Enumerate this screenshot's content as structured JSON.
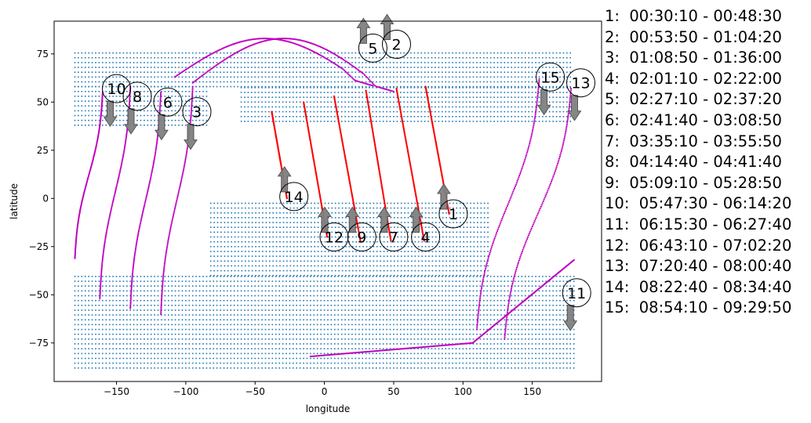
{
  "chart_data": {
    "type": "scatter",
    "xlabel": "longitude",
    "ylabel": "latitude",
    "xlim": [
      -195,
      200
    ],
    "ylim": [
      -95,
      92
    ],
    "xticks": [
      -150,
      -100,
      -50,
      0,
      50,
      100,
      150
    ],
    "yticks": [
      -75,
      -50,
      -25,
      0,
      25,
      50,
      75
    ],
    "grid": false,
    "colors": {
      "land_grid": "#1f77b4",
      "track_primary": "#ff0000",
      "track_secondary": "#bf00bf",
      "arrow": "#808080"
    },
    "land_regions": [
      {
        "lon": [
          -180,
          178
        ],
        "lat": [
          58,
          77
        ],
        "note": "northern band"
      },
      {
        "lon": [
          -180,
          -85
        ],
        "lat": [
          38,
          58
        ],
        "note": "northwest block"
      },
      {
        "lon": [
          -60,
          178
        ],
        "lat": [
          40,
          58
        ],
        "note": "northeast block"
      },
      {
        "lon": [
          -82,
          120
        ],
        "lat": [
          -40,
          -2
        ],
        "note": "central south block"
      },
      {
        "lon": [
          -180,
          182
        ],
        "lat": [
          -88,
          -40
        ],
        "note": "southern band"
      }
    ],
    "tracks": [
      {
        "label": "1",
        "color": "red",
        "from": [
          73,
          58
        ],
        "to": [
          90,
          -8
        ]
      },
      {
        "label": "2",
        "color": "magenta",
        "from": [
          -95,
          60
        ],
        "to": [
          50,
          80
        ]
      },
      {
        "label": "3",
        "color": "magenta",
        "from": [
          -118,
          -60
        ],
        "to": [
          -95,
          58
        ]
      },
      {
        "label": "4",
        "color": "red",
        "from": [
          52,
          57
        ],
        "to": [
          72,
          -22
        ]
      },
      {
        "label": "5",
        "color": "magenta",
        "from": [
          -108,
          63
        ],
        "to": [
          35,
          78
        ]
      },
      {
        "label": "6",
        "color": "magenta",
        "from": [
          -140,
          -57
        ],
        "to": [
          -118,
          55
        ]
      },
      {
        "label": "7",
        "color": "red",
        "from": [
          30,
          56
        ],
        "to": [
          48,
          -22
        ]
      },
      {
        "label": "8",
        "color": "magenta",
        "from": [
          -162,
          -52
        ],
        "to": [
          -140,
          58
        ]
      },
      {
        "label": "9",
        "color": "red",
        "from": [
          7,
          53
        ],
        "to": [
          26,
          -22
        ]
      },
      {
        "label": "10",
        "color": "magenta",
        "from": [
          -180,
          -31
        ],
        "to": [
          -160,
          55
        ]
      },
      {
        "label": "11",
        "color": "magenta",
        "from": [
          107,
          -75
        ],
        "to": [
          180,
          -32
        ]
      },
      {
        "label": "12",
        "color": "red",
        "from": [
          -15,
          50
        ],
        "to": [
          2,
          -20
        ]
      },
      {
        "label": "13",
        "color": "magenta",
        "from": [
          130,
          -73
        ],
        "to": [
          178,
          57
        ]
      },
      {
        "label": "14",
        "color": "red",
        "from": [
          -38,
          45
        ],
        "to": [
          -27,
          0
        ]
      },
      {
        "label": "15",
        "color": "magenta",
        "from": [
          110,
          -68
        ],
        "to": [
          155,
          62
        ]
      }
    ],
    "south_arc": {
      "color": "magenta",
      "from": [
        -10,
        -82
      ],
      "to": [
        107,
        -75
      ]
    },
    "markers": [
      {
        "label": "1",
        "lon": 93,
        "lat": -8,
        "arrow": "up"
      },
      {
        "label": "2",
        "lon": 52,
        "lat": 80,
        "arrow": "up"
      },
      {
        "label": "3",
        "lon": -92,
        "lat": 45,
        "arrow": "down"
      },
      {
        "label": "4",
        "lon": 73,
        "lat": -20,
        "arrow": "up"
      },
      {
        "label": "5",
        "lon": 35,
        "lat": 78,
        "arrow": "up"
      },
      {
        "label": "6",
        "lon": -113,
        "lat": 50,
        "arrow": "down"
      },
      {
        "label": "7",
        "lon": 50,
        "lat": -20,
        "arrow": "up"
      },
      {
        "label": "8",
        "lon": -135,
        "lat": 53,
        "arrow": "down"
      },
      {
        "label": "9",
        "lon": 27,
        "lat": -20,
        "arrow": "up"
      },
      {
        "label": "10",
        "lon": -150,
        "lat": 57,
        "arrow": "down"
      },
      {
        "label": "11",
        "lon": 182,
        "lat": -49,
        "arrow": "down"
      },
      {
        "label": "12",
        "lon": 7,
        "lat": -20,
        "arrow": "up"
      },
      {
        "label": "13",
        "lon": 185,
        "lat": 60,
        "arrow": "down"
      },
      {
        "label": "14",
        "lon": -22,
        "lat": 1,
        "arrow": "up"
      },
      {
        "label": "15",
        "lon": 163,
        "lat": 63,
        "arrow": "down"
      }
    ],
    "legend": [
      "1:  00:30:10 - 00:48:30",
      "2:  00:53:50 - 01:04:20",
      "3:  01:08:50 - 01:36:00",
      "4:  02:01:10 - 02:22:00",
      "5:  02:27:10 - 02:37:20",
      "6:  02:41:40 - 03:08:50",
      "7:  03:35:10 - 03:55:50",
      "8:  04:14:40 - 04:41:40",
      "9:  05:09:10 - 05:28:50",
      "10:  05:47:30 - 06:14:20",
      "11:  06:15:30 - 06:27:40",
      "12:  06:43:10 - 07:02:20",
      "13:  07:20:40 - 08:00:40",
      "14:  08:22:40 - 08:34:40",
      "15:  08:54:10 - 09:29:50"
    ]
  }
}
